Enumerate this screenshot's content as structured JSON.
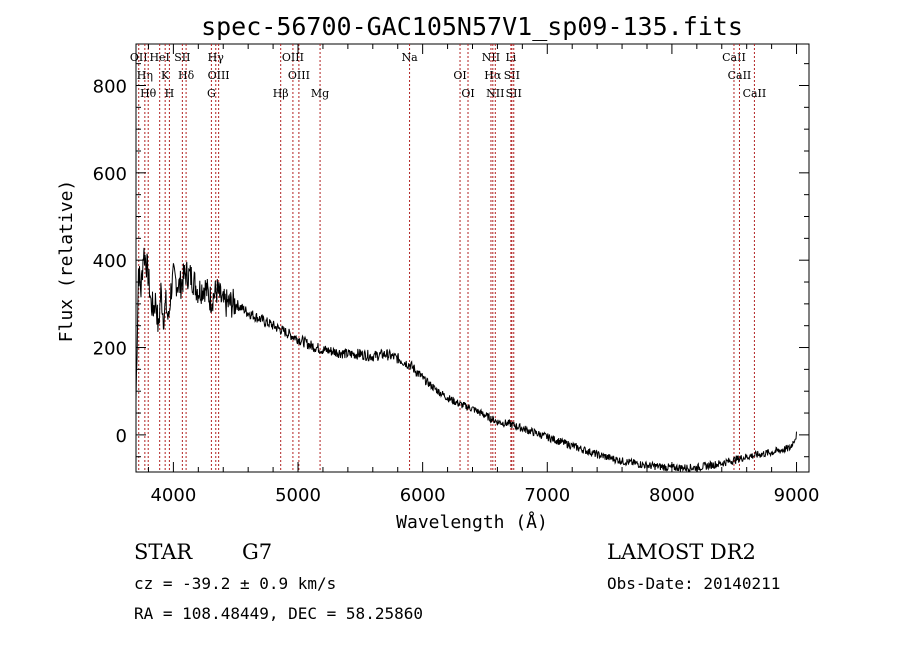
{
  "title": "spec-56700-GAC105N57V1_sp09-135.fits",
  "footer": {
    "class_label": "STAR",
    "subclass_label": "G7",
    "survey": "LAMOST DR2",
    "cz": "cz = -39.2 ± 0.9 km/s",
    "obs_date": "Obs-Date: 20140211",
    "coords": "RA = 108.48449, DEC =  58.25860"
  },
  "chart_data": {
    "type": "line",
    "title": "spec-56700-GAC105N57V1_sp09-135.fits",
    "xlabel": "Wavelength (Å)",
    "ylabel": "Flux (relative)",
    "xlim": [
      3700,
      9100
    ],
    "ylim": [
      -85,
      895
    ],
    "xticks": [
      4000,
      5000,
      6000,
      7000,
      8000,
      9000
    ],
    "yticks": [
      0,
      200,
      400,
      600,
      800
    ],
    "grid": false,
    "legend": "none",
    "series": [
      {
        "color": "#000000",
        "x": [
          3700,
          3720,
          3740,
          3760,
          3780,
          3800,
          3820,
          3840,
          3860,
          3880,
          3900,
          3920,
          3940,
          3960,
          3980,
          4000,
          4050,
          4100,
          4150,
          4200,
          4250,
          4300,
          4350,
          4400,
          4500,
          4600,
          4700,
          4800,
          4900,
          5000,
          5100,
          5200,
          5300,
          5400,
          5500,
          5600,
          5700,
          5800,
          5900,
          6000,
          6100,
          6200,
          6300,
          6400,
          6500,
          6600,
          6700,
          6800,
          6900,
          7000,
          7200,
          7400,
          7600,
          7800,
          8000,
          8200,
          8400,
          8600,
          8800,
          8950,
          9000
        ],
        "y": [
          80,
          380,
          330,
          420,
          400,
          360,
          300,
          290,
          310,
          240,
          330,
          270,
          300,
          260,
          330,
          360,
          340,
          370,
          360,
          330,
          340,
          310,
          330,
          300,
          300,
          280,
          265,
          250,
          235,
          220,
          205,
          195,
          190,
          185,
          185,
          180,
          185,
          175,
          160,
          130,
          105,
          85,
          70,
          60,
          45,
          30,
          25,
          15,
          5,
          -5,
          -25,
          -45,
          -60,
          -70,
          -75,
          -75,
          -65,
          -50,
          -40,
          -30,
          0
        ]
      }
    ],
    "line_markers": [
      {
        "wavelength": 3722,
        "label": "OII"
      },
      {
        "wavelength": 3771,
        "label": "Hη"
      },
      {
        "wavelength": 3798,
        "label": "Hθ"
      },
      {
        "wavelength": 3890,
        "label": "HeI"
      },
      {
        "wavelength": 3934,
        "label": "K"
      },
      {
        "wavelength": 3968,
        "label": "H"
      },
      {
        "wavelength": 4072,
        "label": "SII"
      },
      {
        "wavelength": 4102,
        "label": "Hδ"
      },
      {
        "wavelength": 4305,
        "label": "G"
      },
      {
        "wavelength": 4340,
        "label": "Hγ"
      },
      {
        "wavelength": 4363,
        "label": "OIII"
      },
      {
        "wavelength": 4861,
        "label": "Hβ"
      },
      {
        "wavelength": 4959,
        "label": "OIII"
      },
      {
        "wavelength": 5007,
        "label": "OIII"
      },
      {
        "wavelength": 5177,
        "label": "Mg"
      },
      {
        "wavelength": 5895,
        "label": "Na"
      },
      {
        "wavelength": 6300,
        "label": "OI"
      },
      {
        "wavelength": 6364,
        "label": "OI"
      },
      {
        "wavelength": 6548,
        "label": "NII"
      },
      {
        "wavelength": 6563,
        "label": "Hα"
      },
      {
        "wavelength": 6583,
        "label": "NII"
      },
      {
        "wavelength": 6708,
        "label": "Li"
      },
      {
        "wavelength": 6716,
        "label": "SII"
      },
      {
        "wavelength": 6731,
        "label": "SII"
      },
      {
        "wavelength": 8498,
        "label": "CaII"
      },
      {
        "wavelength": 8542,
        "label": "CaII"
      },
      {
        "wavelength": 8662,
        "label": "CaII"
      }
    ],
    "line_color": "#b22222"
  }
}
